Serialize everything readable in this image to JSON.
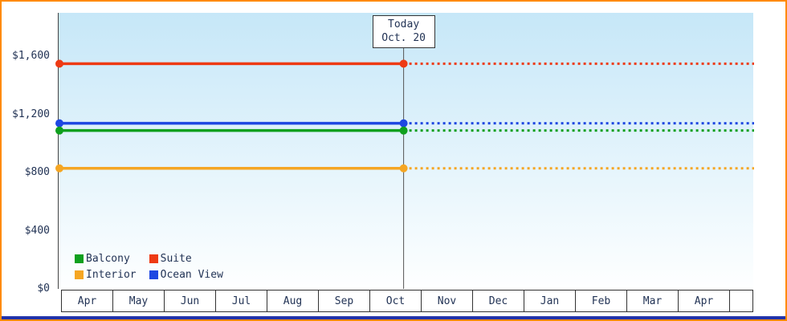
{
  "chart_data": {
    "type": "line",
    "title": "",
    "description": "Cruise cabin price tracker: flat price lines per cabin category, solid history before today, dotted projection after today",
    "x_months": [
      "Apr",
      "May",
      "Jun",
      "Jul",
      "Aug",
      "Sep",
      "Oct",
      "Nov",
      "Dec",
      "Jan",
      "Feb",
      "Mar",
      "Apr"
    ],
    "today": {
      "line1": "Today",
      "line2": "Oct. 20",
      "month_index": 6,
      "month_fraction": 0.65
    },
    "y_axis": {
      "ticks": [
        {
          "label": "$0",
          "value": 0
        },
        {
          "label": "$400",
          "value": 400
        },
        {
          "label": "$800",
          "value": 800
        },
        {
          "label": "$1,200",
          "value": 1200
        },
        {
          "label": "$1,600",
          "value": 1600
        }
      ],
      "max": 1900
    },
    "series": [
      {
        "name": "Suite",
        "color": "#EE3A14",
        "value": 1550
      },
      {
        "name": "Ocean View",
        "color": "#1E48E2",
        "value": 1140
      },
      {
        "name": "Balcony",
        "color": "#0FA01E",
        "value": 1090
      },
      {
        "name": "Interior",
        "color": "#F5A623",
        "value": 830
      }
    ],
    "legend_order": [
      "Balcony",
      "Suite",
      "Interior",
      "Ocean View"
    ],
    "legend_position": "bottom-left",
    "grid": false,
    "line_style": {
      "past": "solid",
      "future": "dotted"
    }
  },
  "colors": {
    "frame_border": "#FF8A00",
    "plot_gradient_top": "#C6E7F8",
    "plot_gradient_bottom": "#FEFFFF",
    "axis_line": "#444444",
    "today_line": "#555555",
    "text": "#223355",
    "bottom_bar": "#2233AA"
  }
}
